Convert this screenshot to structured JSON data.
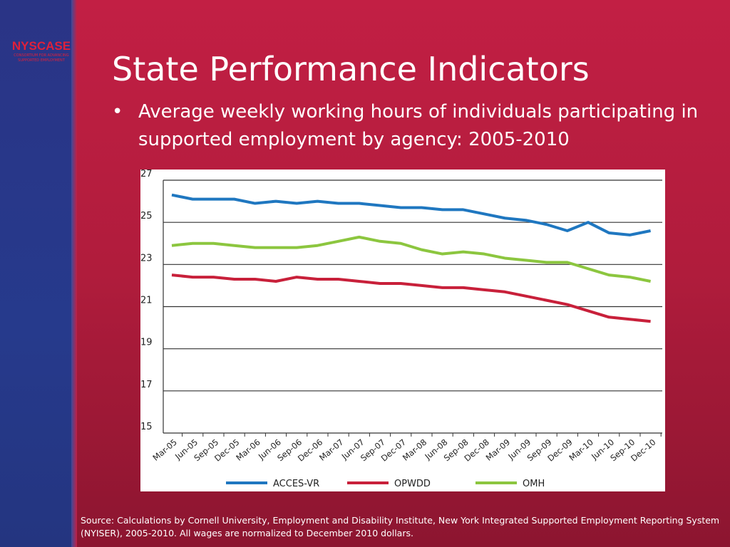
{
  "logo": {
    "name": "NYSCASE",
    "tagline": "CONSORTIUM FOR ADVANCING SUPPORTED EMPLOYMENT"
  },
  "title": "State Performance Indicators",
  "bullet": "Average weekly working hours of individuals participating in supported employment by agency: 2005-2010",
  "source": "Source: Calculations by Cornell University, Employment and Disability Institute, New York Integrated Supported Employment Reporting System (NYISER), 2005-2010. All wages are normalized to December 2010 dollars.",
  "chart_data": {
    "type": "line",
    "title": "",
    "xlabel": "",
    "ylabel": "",
    "ylim": [
      15,
      27
    ],
    "yticks": [
      15,
      17,
      19,
      21,
      23,
      25,
      27
    ],
    "grid": true,
    "legend": "bottom",
    "categories": [
      "Mar-05",
      "Jun-05",
      "Sep-05",
      "Dec-05",
      "Mar-06",
      "Jun-06",
      "Sep-06",
      "Dec-06",
      "Mar-07",
      "Jun-07",
      "Sep-07",
      "Dec-07",
      "Mar-08",
      "Jun-08",
      "Sep-08",
      "Dec-08",
      "Mar-09",
      "Jun-09",
      "Sep-09",
      "Dec-09",
      "Mar-10",
      "Jun-10",
      "Sep-10",
      "Dec-10"
    ],
    "series": [
      {
        "name": "ACCES-VR",
        "color": "#1f77c0",
        "values": [
          26.3,
          26.1,
          26.1,
          26.1,
          25.9,
          26.0,
          25.9,
          26.0,
          25.9,
          25.9,
          25.8,
          25.7,
          25.7,
          25.6,
          25.6,
          25.4,
          25.2,
          25.1,
          24.9,
          24.6,
          25.0,
          24.5,
          24.4,
          24.6
        ]
      },
      {
        "name": "OPWDD",
        "color": "#c8203a",
        "values": [
          22.5,
          22.4,
          22.4,
          22.3,
          22.3,
          22.2,
          22.4,
          22.3,
          22.3,
          22.2,
          22.1,
          22.1,
          22.0,
          21.9,
          21.9,
          21.8,
          21.7,
          21.5,
          21.3,
          21.1,
          20.8,
          20.5,
          20.4,
          20.3
        ]
      },
      {
        "name": "OMH",
        "color": "#8cc63f",
        "values": [
          23.9,
          24.0,
          24.0,
          23.9,
          23.8,
          23.8,
          23.8,
          23.9,
          24.1,
          24.3,
          24.1,
          24.0,
          23.7,
          23.5,
          23.6,
          23.5,
          23.3,
          23.2,
          23.1,
          23.1,
          22.8,
          22.5,
          22.4,
          22.2
        ]
      }
    ]
  }
}
